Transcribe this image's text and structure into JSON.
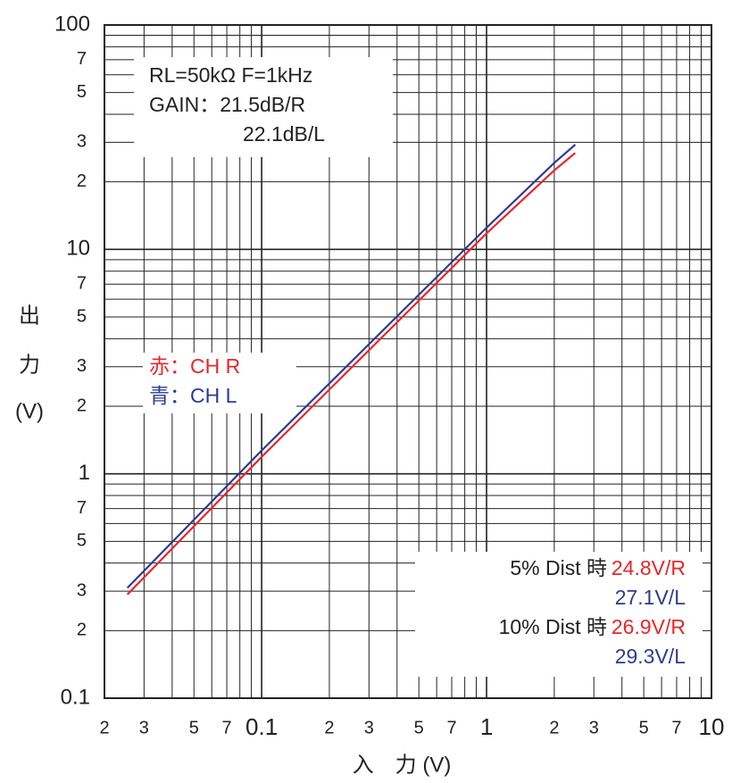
{
  "chart_data": {
    "type": "line",
    "log_x": true,
    "log_y": true,
    "grid": true,
    "xlabel": "入　力 (V)",
    "ylabel": [
      "出",
      "力",
      "(V)"
    ],
    "xlim": [
      0.02,
      10
    ],
    "ylim": [
      0.1,
      100
    ],
    "xticks": [
      {
        "value": 0.02,
        "label": "2"
      },
      {
        "value": 0.03,
        "label": "3"
      },
      {
        "value": 0.05,
        "label": "5"
      },
      {
        "value": 0.07,
        "label": "7"
      },
      0.1,
      {
        "value": 0.2,
        "label": "2"
      },
      {
        "value": 0.3,
        "label": "3"
      },
      {
        "value": 0.5,
        "label": "5"
      },
      {
        "value": 0.7,
        "label": "7"
      },
      1,
      {
        "value": 2,
        "label": "2"
      },
      {
        "value": 3,
        "label": "3"
      },
      {
        "value": 5,
        "label": "5"
      },
      {
        "value": 7,
        "label": "7"
      },
      10
    ],
    "yticks": [
      0.1,
      {
        "value": 0.2,
        "label": "2"
      },
      {
        "value": 0.3,
        "label": "3"
      },
      {
        "value": 0.5,
        "label": "5"
      },
      {
        "value": 0.7,
        "label": "7"
      },
      1,
      {
        "value": 2,
        "label": "2"
      },
      {
        "value": 3,
        "label": "3"
      },
      {
        "value": 5,
        "label": "5"
      },
      {
        "value": 7,
        "label": "7"
      },
      10,
      {
        "value": 20,
        "label": "2"
      },
      {
        "value": 30,
        "label": "3"
      },
      {
        "value": 50,
        "label": "5"
      },
      {
        "value": 70,
        "label": "7"
      },
      100
    ],
    "xgrid": [
      0.03,
      0.04,
      0.05,
      0.06,
      0.07,
      0.08,
      0.09,
      0.1,
      0.2,
      0.3,
      0.4,
      0.5,
      0.6,
      0.7,
      0.8,
      0.9,
      1,
      2,
      3,
      4,
      5,
      6,
      7,
      8,
      9
    ],
    "ygrid": [
      0.2,
      0.3,
      0.4,
      0.5,
      0.6,
      0.7,
      0.8,
      0.9,
      1,
      2,
      3,
      4,
      5,
      6,
      7,
      8,
      9,
      10,
      20,
      30,
      40,
      50,
      60,
      70,
      80,
      90
    ],
    "series": [
      {
        "name": "赤：CH R",
        "color": "#e8262c",
        "x": [
          0.0253,
          0.1,
          1,
          2,
          2.48
        ],
        "values": [
          0.29,
          1.19,
          11.8,
          22.5,
          26.9
        ]
      },
      {
        "name": "青：CH L",
        "color": "#2b3c95",
        "x": [
          0.0253,
          0.1,
          1,
          2,
          2.48
        ],
        "values": [
          0.31,
          1.27,
          12.5,
          24.3,
          29.3
        ]
      }
    ],
    "annotations": {
      "conditions": [
        "RL=50kΩ  F=1kHz",
        "GAIN：21.5dB/R",
        "22.1dB/L"
      ],
      "dist": [
        {
          "label": "5% Dist 時",
          "r": "24.8V/R",
          "l": "27.1V/L"
        },
        {
          "label": "10% Dist 時",
          "r": "26.9V/R",
          "l": "29.3V/L"
        }
      ]
    }
  }
}
